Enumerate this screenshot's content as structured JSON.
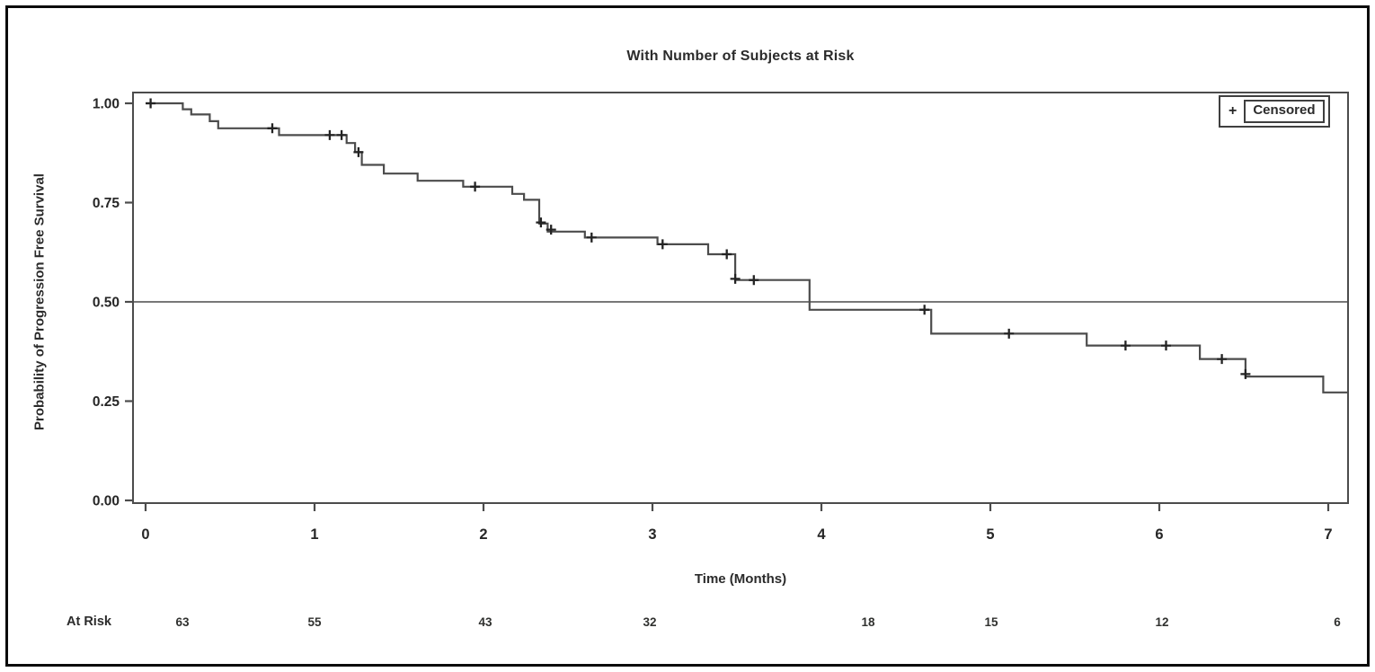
{
  "chart_data": {
    "type": "line",
    "subtype": "kaplan_meier_step",
    "title": "With Number of Subjects at Risk",
    "xlabel": "Time (Months)",
    "ylabel": "Probability of Progression Free Survival",
    "xlim": [
      -0.08,
      7.12
    ],
    "ylim": [
      -0.01,
      1.03
    ],
    "x_ticks": [
      0,
      1,
      2,
      3,
      4,
      5,
      6,
      7
    ],
    "y_ticks": [
      {
        "value": 1.0,
        "label": "1.00"
      },
      {
        "value": 0.75,
        "label": "0.75"
      },
      {
        "value": 0.5,
        "label": "0.50"
      },
      {
        "value": 0.25,
        "label": "0.25"
      },
      {
        "value": 0.0,
        "label": "0.00"
      }
    ],
    "grid": false,
    "reference_line_y": 0.5,
    "legend_position": "top-right",
    "legend_label": "Censored",
    "censor_marker": "+",
    "series": [
      {
        "name": "Progression Free Survival",
        "steps": [
          [
            0.0,
            1.0
          ],
          [
            0.22,
            0.985
          ],
          [
            0.27,
            0.972
          ],
          [
            0.38,
            0.955
          ],
          [
            0.43,
            0.937
          ],
          [
            0.79,
            0.92
          ],
          [
            1.19,
            0.9
          ],
          [
            1.24,
            0.877
          ],
          [
            1.28,
            0.845
          ],
          [
            1.41,
            0.823
          ],
          [
            1.61,
            0.805
          ],
          [
            1.88,
            0.79
          ],
          [
            2.17,
            0.772
          ],
          [
            2.24,
            0.757
          ],
          [
            2.33,
            0.697
          ],
          [
            2.38,
            0.677
          ],
          [
            2.6,
            0.662
          ],
          [
            3.03,
            0.645
          ],
          [
            3.33,
            0.62
          ],
          [
            3.49,
            0.555
          ],
          [
            3.93,
            0.48
          ],
          [
            4.65,
            0.42
          ],
          [
            5.57,
            0.39
          ],
          [
            6.24,
            0.356
          ],
          [
            6.51,
            0.312
          ],
          [
            6.97,
            0.272
          ]
        ],
        "end_time": 7.12
      }
    ],
    "censors": [
      [
        0.03,
        1.0
      ],
      [
        0.75,
        0.937
      ],
      [
        1.09,
        0.92
      ],
      [
        1.16,
        0.92
      ],
      [
        1.26,
        0.877
      ],
      [
        1.95,
        0.79
      ],
      [
        2.34,
        0.7
      ],
      [
        2.4,
        0.682
      ],
      [
        2.64,
        0.662
      ],
      [
        3.06,
        0.645
      ],
      [
        3.44,
        0.62
      ],
      [
        3.49,
        0.558
      ],
      [
        3.6,
        0.555
      ],
      [
        4.61,
        0.48
      ],
      [
        5.11,
        0.42
      ],
      [
        5.8,
        0.39
      ],
      [
        6.04,
        0.39
      ],
      [
        6.37,
        0.356
      ],
      [
        6.51,
        0.318
      ]
    ],
    "at_risk": {
      "label": "At Risk",
      "times": [
        0,
        1,
        2,
        3,
        4,
        5,
        6,
        7
      ],
      "counts": [
        63,
        55,
        43,
        32,
        18,
        15,
        12,
        6
      ]
    }
  }
}
